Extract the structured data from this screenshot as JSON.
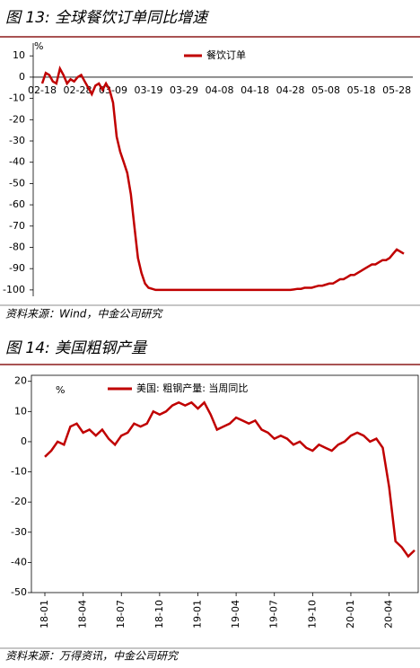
{
  "chart_data": [
    {
      "type": "line",
      "title": "图 13: 全球餐饮订单同比增速",
      "source": "资料来源：Wind，中金公司研究",
      "y_unit": "%",
      "categories": [
        "02-18",
        null,
        null,
        null,
        null,
        null,
        null,
        null,
        null,
        null,
        "02-28",
        null,
        null,
        null,
        null,
        null,
        null,
        null,
        null,
        null,
        "03-09",
        null,
        null,
        null,
        null,
        null,
        null,
        null,
        null,
        null,
        "03-19",
        null,
        null,
        null,
        null,
        null,
        null,
        null,
        null,
        null,
        "03-29",
        null,
        null,
        null,
        null,
        null,
        null,
        null,
        null,
        null,
        "04-08",
        null,
        null,
        null,
        null,
        null,
        null,
        null,
        null,
        null,
        "04-18",
        null,
        null,
        null,
        null,
        null,
        null,
        null,
        null,
        null,
        "04-28",
        null,
        null,
        null,
        null,
        null,
        null,
        null,
        null,
        null,
        "05-08",
        null,
        null,
        null,
        null,
        null,
        null,
        null,
        null,
        null,
        "05-18",
        null,
        null,
        null,
        null,
        null,
        null,
        null,
        null,
        null,
        "05-28",
        null,
        null
      ],
      "series": [
        {
          "name": "餐饮订单",
          "color": "#c00000",
          "values": [
            -3,
            2,
            1,
            -2,
            -3,
            4,
            1,
            -3,
            -1,
            -2,
            0,
            1,
            -2,
            -5,
            -8,
            -4,
            -3,
            -6,
            -3,
            -6,
            -12,
            -28,
            -35,
            -40,
            -45,
            -55,
            -70,
            -85,
            -92,
            -97,
            -99,
            -99.5,
            -100,
            -100,
            -100,
            -100,
            -100,
            -100,
            -100,
            -100,
            -100,
            -100,
            -100,
            -100,
            -100,
            -100,
            -100,
            -100,
            -100,
            -100,
            -100,
            -100,
            -100,
            -100,
            -100,
            -100,
            -100,
            -100,
            -100,
            -100,
            -100,
            -100,
            -100,
            -100,
            -100,
            -100,
            -100,
            -100,
            -100,
            -100,
            -100,
            -99.8,
            -99.5,
            -99.5,
            -99,
            -99,
            -99,
            -98.5,
            -98,
            -98,
            -97.5,
            -97,
            -97,
            -96,
            -95,
            -95,
            -94,
            -93,
            -93,
            -92,
            -91,
            -90,
            -89,
            -88,
            -88,
            -87,
            -86,
            -86,
            -85,
            -83,
            -81,
            -82,
            -83
          ]
        }
      ],
      "ylim": [
        -103,
        16
      ],
      "yticks": [
        10,
        0,
        -10,
        -20,
        -30,
        -40,
        -50,
        -60,
        -70,
        -80,
        -90,
        -100
      ]
    },
    {
      "type": "line",
      "title": "图 14: 美国粗钢产量",
      "source": "资料来源：万得资讯，中金公司研究",
      "y_unit": "%",
      "categories": [
        "18-01",
        null,
        null,
        null,
        null,
        null,
        "18-04",
        null,
        null,
        null,
        null,
        null,
        "18-07",
        null,
        null,
        null,
        null,
        null,
        "18-10",
        null,
        null,
        null,
        null,
        null,
        "19-01",
        null,
        null,
        null,
        null,
        null,
        "19-04",
        null,
        null,
        null,
        null,
        null,
        "19-07",
        null,
        null,
        null,
        null,
        null,
        "19-10",
        null,
        null,
        null,
        null,
        null,
        "20-01",
        null,
        null,
        null,
        null,
        null,
        "20-04",
        null,
        null,
        null,
        null
      ],
      "series": [
        {
          "name": "美国: 粗钢产量: 当周同比",
          "color": "#c00000",
          "values": [
            -5,
            -3,
            0,
            -1,
            5,
            6,
            3,
            4,
            2,
            4,
            1,
            -1,
            2,
            3,
            6,
            5,
            6,
            10,
            9,
            10,
            12,
            13,
            12,
            13,
            11,
            13,
            9,
            4,
            5,
            6,
            8,
            7,
            6,
            7,
            4,
            3,
            1,
            2,
            1,
            -1,
            0,
            -2,
            -3,
            -1,
            -2,
            -3,
            -1,
            0,
            2,
            3,
            2,
            0,
            1,
            -2,
            -15,
            -33,
            -35,
            -38,
            -36
          ]
        }
      ],
      "ylim": [
        -50,
        22
      ],
      "yticks": [
        20,
        10,
        0,
        -10,
        -20,
        -30,
        -40,
        -50
      ]
    }
  ]
}
